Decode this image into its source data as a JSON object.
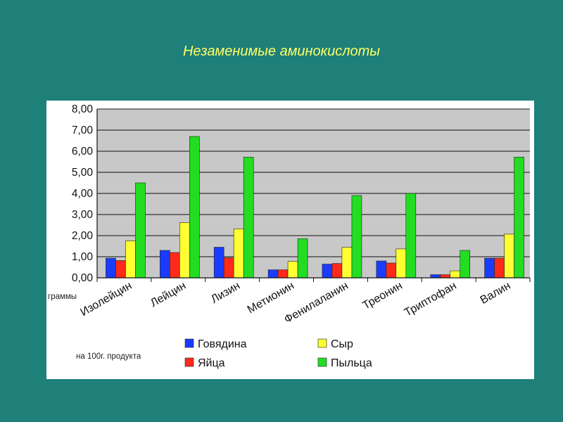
{
  "slide": {
    "title": "Незаменимые аминокислоты"
  },
  "chart_data": {
    "type": "bar",
    "title": "",
    "xlabel": "",
    "ylabel": "граммы",
    "note": "на 100г. продукта",
    "ylim": [
      0,
      8
    ],
    "yticks": [
      "0,00",
      "1,00",
      "2,00",
      "3,00",
      "4,00",
      "5,00",
      "6,00",
      "7,00",
      "8,00"
    ],
    "grid": true,
    "legend_position": "bottom-right",
    "categories": [
      "Изолейцин",
      "Лейцин",
      "Лизин",
      "Метионин",
      "Фенилаланин",
      "Треонин",
      "Триптофан",
      "Валин"
    ],
    "series": [
      {
        "name": "Говядина",
        "color": "#1a3cff",
        "values": [
          0.93,
          1.3,
          1.45,
          0.38,
          0.65,
          0.8,
          0.15,
          0.93
        ]
      },
      {
        "name": "Яйца",
        "color": "#ff2a1a",
        "values": [
          0.82,
          1.2,
          0.95,
          0.38,
          0.68,
          0.7,
          0.15,
          0.93
        ]
      },
      {
        "name": "Сыр",
        "color": "#ffff33",
        "values": [
          1.75,
          2.62,
          2.32,
          0.78,
          1.45,
          1.37,
          0.33,
          2.07
        ]
      },
      {
        "name": "Пыльца",
        "color": "#22dd22",
        "values": [
          4.5,
          6.7,
          5.72,
          1.85,
          3.9,
          4.0,
          1.3,
          5.72
        ]
      }
    ]
  }
}
